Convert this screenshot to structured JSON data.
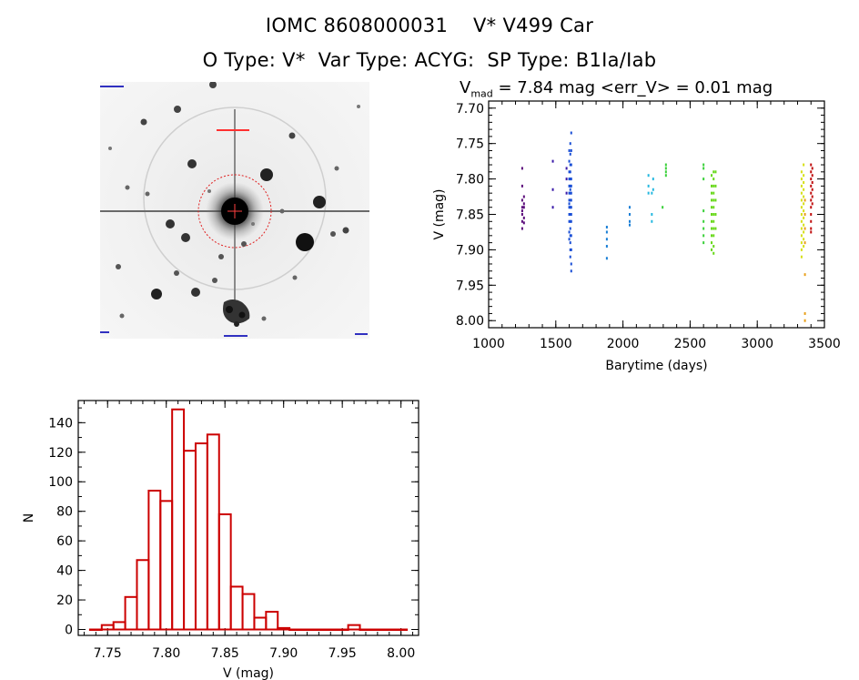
{
  "header": {
    "line1": "IOMC 8608000031    V* V499 Car",
    "line2": "O Type: V*  Var Type: ACYG:  SP Type: B1Ia/Iab"
  },
  "lightcurve_header": {
    "v_symbol": "V",
    "v_sub": "mad",
    "rest": " = 7.84 mag <err_V> = 0.01 mag"
  },
  "image_panel": {
    "description_icon": "star-field-thumbnail"
  },
  "colors": {
    "histogram": "#cc0000",
    "series_palette": [
      "#5a0a7a",
      "#3a1aa8",
      "#1a4fd6",
      "#1a7fd6",
      "#25b8e0",
      "#3ad03a",
      "#68d81a",
      "#d6e01a",
      "#e8a01a",
      "#c01010"
    ]
  },
  "chart_data": [
    {
      "type": "scatter",
      "title": "",
      "xlabel": "Barytime (days)",
      "ylabel": "V (mag)",
      "xlim": [
        1000,
        3500
      ],
      "ylim": [
        8.01,
        7.69
      ],
      "y_inverted": true,
      "x_ticks": [
        "1000",
        "1500",
        "2000",
        "2500",
        "3000",
        "3500"
      ],
      "y_ticks": [
        "7.70",
        "7.75",
        "7.80",
        "7.85",
        "7.90",
        "7.95",
        "8.00"
      ],
      "groups": [
        {
          "x": 1250,
          "v": [
            7.785,
            7.81,
            7.83,
            7.84,
            7.845,
            7.85,
            7.86,
            7.87
          ],
          "color": "#5a0a7a"
        },
        {
          "x": 1263,
          "v": [
            7.825,
            7.835,
            7.84,
            7.855,
            7.862
          ],
          "color": "#5a0a7a"
        },
        {
          "x": 1478,
          "v": [
            7.775,
            7.815,
            7.84
          ],
          "color": "#3a1aa8"
        },
        {
          "x": 1580,
          "v": [
            7.785,
            7.8,
            7.82
          ],
          "color": "#3a1aa8"
        },
        {
          "x": 1600,
          "v": [
            7.76,
            7.775,
            7.79,
            7.8,
            7.81,
            7.82,
            7.83,
            7.835,
            7.84,
            7.85,
            7.86,
            7.875,
            7.885
          ],
          "color": "#1a4fd6"
        },
        {
          "x": 1608,
          "v": [
            7.75,
            7.765,
            7.78,
            7.79,
            7.8,
            7.81,
            7.815,
            7.82,
            7.83,
            7.84,
            7.85,
            7.86,
            7.87,
            7.88,
            7.89,
            7.9,
            7.91
          ],
          "color": "#1a4fd6"
        },
        {
          "x": 1615,
          "v": [
            7.735,
            7.76,
            7.78,
            7.8,
            7.81,
            7.82,
            7.83,
            7.84,
            7.85,
            7.86,
            7.88,
            7.9,
            7.92,
            7.93
          ],
          "color": "#1a4fd6"
        },
        {
          "x": 1880,
          "v": [
            7.868,
            7.875,
            7.885,
            7.895,
            7.912
          ],
          "color": "#1a7fd6"
        },
        {
          "x": 2050,
          "v": [
            7.84,
            7.85,
            7.86,
            7.865
          ],
          "color": "#1a7fd6"
        },
        {
          "x": 2190,
          "v": [
            7.795,
            7.81,
            7.82
          ],
          "color": "#25b8e0"
        },
        {
          "x": 2215,
          "v": [
            7.82,
            7.85,
            7.86
          ],
          "color": "#25b8e0"
        },
        {
          "x": 2225,
          "v": [
            7.8,
            7.815
          ],
          "color": "#25b8e0"
        },
        {
          "x": 2295,
          "v": [
            7.84
          ],
          "color": "#3ad03a"
        },
        {
          "x": 2320,
          "v": [
            7.78,
            7.785,
            7.79,
            7.795
          ],
          "color": "#3ad03a"
        },
        {
          "x": 2600,
          "v": [
            7.78,
            7.785,
            7.8,
            7.845,
            7.86,
            7.87,
            7.88,
            7.89
          ],
          "color": "#3ad03a"
        },
        {
          "x": 2660,
          "v": [
            7.795,
            7.81,
            7.82,
            7.83,
            7.84,
            7.85,
            7.86,
            7.87,
            7.88,
            7.89,
            7.9
          ],
          "color": "#68d81a"
        },
        {
          "x": 2675,
          "v": [
            7.79,
            7.8,
            7.81,
            7.82,
            7.83,
            7.84,
            7.85,
            7.86,
            7.87,
            7.88,
            7.895,
            7.905
          ],
          "color": "#68d81a"
        },
        {
          "x": 2690,
          "v": [
            7.79,
            7.81,
            7.83,
            7.85,
            7.87
          ],
          "color": "#68d81a"
        },
        {
          "x": 3330,
          "v": [
            7.79,
            7.8,
            7.81,
            7.82,
            7.83,
            7.84,
            7.85,
            7.86,
            7.87,
            7.88,
            7.89,
            7.9,
            7.91
          ],
          "color": "#d6e01a"
        },
        {
          "x": 3345,
          "v": [
            7.78,
            7.795,
            7.805,
            7.815,
            7.825,
            7.835,
            7.845,
            7.855,
            7.865,
            7.875,
            7.885,
            7.895
          ],
          "color": "#d6e01a"
        },
        {
          "x": 3355,
          "v": [
            7.83,
            7.85,
            7.87,
            7.89,
            7.935,
            7.99,
            8.0
          ],
          "color": "#e8a01a"
        },
        {
          "x": 3400,
          "v": [
            7.78,
            7.79,
            7.8,
            7.81,
            7.82,
            7.83,
            7.84,
            7.85,
            7.86,
            7.87,
            7.875
          ],
          "color": "#c01010"
        },
        {
          "x": 3410,
          "v": [
            7.785,
            7.795,
            7.805,
            7.815,
            7.825,
            7.835
          ],
          "color": "#c01010"
        }
      ]
    },
    {
      "type": "bar",
      "title": "",
      "xlabel": "V (mag)",
      "ylabel": "N",
      "xlim": [
        7.725,
        8.015
      ],
      "ylim": [
        -4,
        155
      ],
      "x_ticks": [
        "7.75",
        "7.80",
        "7.85",
        "7.90",
        "7.95",
        "8.00"
      ],
      "y_ticks": [
        "0",
        "20",
        "40",
        "60",
        "80",
        "100",
        "120",
        "140"
      ],
      "bin_width": 0.01,
      "bin_starts": [
        7.735,
        7.745,
        7.755,
        7.765,
        7.775,
        7.785,
        7.795,
        7.805,
        7.815,
        7.825,
        7.835,
        7.845,
        7.855,
        7.865,
        7.875,
        7.885,
        7.895,
        7.905,
        7.915,
        7.925,
        7.935,
        7.945,
        7.955,
        7.965,
        7.975,
        7.985,
        7.995
      ],
      "values": [
        0,
        3,
        5,
        22,
        47,
        94,
        87,
        149,
        121,
        126,
        132,
        78,
        29,
        24,
        8,
        12,
        1,
        0,
        0,
        0,
        0,
        0,
        3,
        0,
        0,
        0,
        0
      ]
    }
  ]
}
